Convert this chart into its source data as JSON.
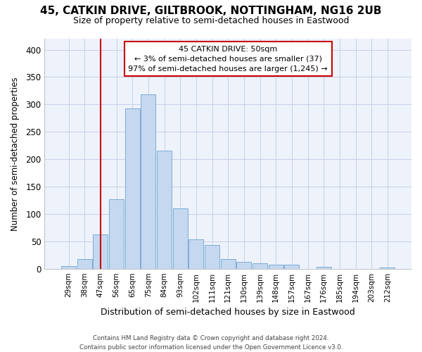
{
  "title1": "45, CATKIN DRIVE, GILTBROOK, NOTTINGHAM, NG16 2UB",
  "title2": "Size of property relative to semi-detached houses in Eastwood",
  "xlabel": "Distribution of semi-detached houses by size in Eastwood",
  "ylabel": "Number of semi-detached properties",
  "categories": [
    "29sqm",
    "38sqm",
    "47sqm",
    "56sqm",
    "65sqm",
    "75sqm",
    "84sqm",
    "93sqm",
    "102sqm",
    "111sqm",
    "121sqm",
    "130sqm",
    "139sqm",
    "148sqm",
    "157sqm",
    "167sqm",
    "176sqm",
    "185sqm",
    "194sqm",
    "203sqm",
    "212sqm"
  ],
  "values": [
    5,
    17,
    62,
    127,
    293,
    318,
    215,
    110,
    53,
    43,
    17,
    12,
    10,
    7,
    7,
    0,
    3,
    0,
    0,
    0,
    2
  ],
  "bar_color": "#c5d8f0",
  "bar_edge_color": "#7aadd4",
  "vline_x_index": 2,
  "vline_color": "#cc0000",
  "annotation_line1": "45 CATKIN DRIVE: 50sqm",
  "annotation_line2": "← 3% of semi-detached houses are smaller (37)",
  "annotation_line3": "97% of semi-detached houses are larger (1,245) →",
  "annotation_box_edge": "#cc0000",
  "footer1": "Contains HM Land Registry data © Crown copyright and database right 2024.",
  "footer2": "Contains public sector information licensed under the Open Government Licence v3.0.",
  "ylim": [
    0,
    420
  ],
  "yticks": [
    0,
    50,
    100,
    150,
    200,
    250,
    300,
    350,
    400
  ],
  "background_color": "#ffffff",
  "plot_bg_color": "#eef2fb",
  "grid_color": "#c8cfe8",
  "title1_fontsize": 11,
  "title2_fontsize": 9
}
